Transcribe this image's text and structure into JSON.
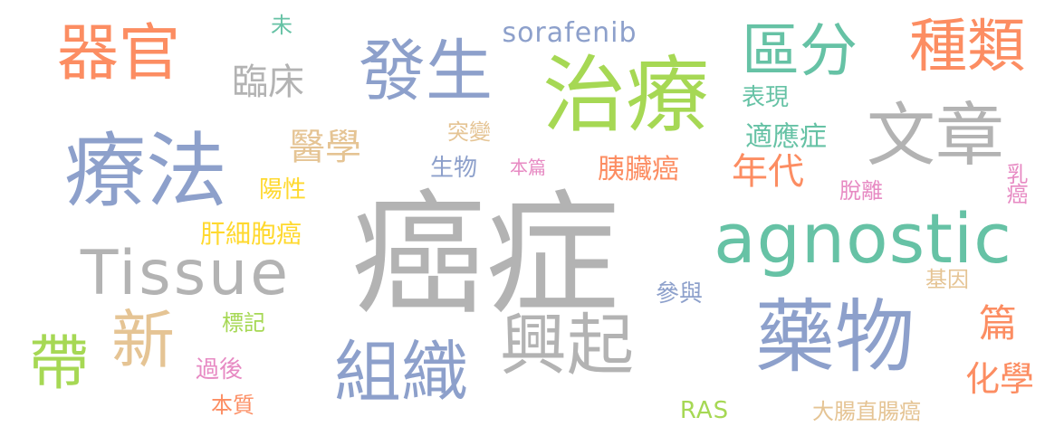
{
  "words": [
    {
      "id": "aizheng",
      "text": "癌症",
      "color": "#b3b3b3"
    },
    {
      "id": "zhiliao",
      "text": "治療",
      "color": "#a6d854"
    },
    {
      "id": "liaofa",
      "text": "療法",
      "color": "#8da0cb"
    },
    {
      "id": "yaowu",
      "text": "藥物",
      "color": "#8da0cb"
    },
    {
      "id": "agnostic",
      "text": "agnostic",
      "color": "#66c2a5"
    },
    {
      "id": "tissue",
      "text": "Tissue",
      "color": "#b3b3b3"
    },
    {
      "id": "wenzhang",
      "text": "文章",
      "color": "#b3b3b3"
    },
    {
      "id": "fasheng",
      "text": "發生",
      "color": "#8da0cb"
    },
    {
      "id": "zuzhi",
      "text": "組織",
      "color": "#8da0cb"
    },
    {
      "id": "xingqi",
      "text": "興起",
      "color": "#b3b3b3"
    },
    {
      "id": "qiguan",
      "text": "器官",
      "color": "#fc8d62"
    },
    {
      "id": "zhonglei",
      "text": "種類",
      "color": "#fc8d62"
    },
    {
      "id": "qufen",
      "text": "區分",
      "color": "#66c2a5"
    },
    {
      "id": "dai",
      "text": "帶",
      "color": "#a6d854"
    },
    {
      "id": "xin",
      "text": "新",
      "color": "#e5c494"
    },
    {
      "id": "sorafenib",
      "text": "sorafenib",
      "color": "#8da0cb"
    },
    {
      "id": "linchuang",
      "text": "臨床",
      "color": "#b3b3b3"
    },
    {
      "id": "yixue",
      "text": "醫學",
      "color": "#e5c494"
    },
    {
      "id": "niandai",
      "text": "年代",
      "color": "#fc8d62"
    },
    {
      "id": "huaxue",
      "text": "化學",
      "color": "#fc8d62"
    },
    {
      "id": "pian",
      "text": "篇",
      "color": "#fc8d62"
    },
    {
      "id": "yizangai",
      "text": "胰臟癌",
      "color": "#fc8d62"
    },
    {
      "id": "shiyingzheng",
      "text": "適應症",
      "color": "#66c2a5"
    },
    {
      "id": "biaoxian",
      "text": "表現",
      "color": "#66c2a5"
    },
    {
      "id": "tubian",
      "text": "突變",
      "color": "#e5c494"
    },
    {
      "id": "shengwu",
      "text": "生物",
      "color": "#8da0cb"
    },
    {
      "id": "benpian",
      "text": "本篇",
      "color": "#e78ac3"
    },
    {
      "id": "yangxing",
      "text": "陽性",
      "color": "#ffd92f"
    },
    {
      "id": "ganxibaobaoai",
      "text": "肝細胞癌",
      "color": "#ffd92f"
    },
    {
      "id": "tuoli",
      "text": "脫離",
      "color": "#e78ac3"
    },
    {
      "id": "ruai",
      "text": "乳癌",
      "color": "#e78ac3"
    },
    {
      "id": "wei",
      "text": "未",
      "color": "#66c2a5"
    },
    {
      "id": "canyu",
      "text": "參與",
      "color": "#8da0cb"
    },
    {
      "id": "jiyin",
      "text": "基因",
      "color": "#e5c494"
    },
    {
      "id": "biaoji",
      "text": "標記",
      "color": "#a6d854"
    },
    {
      "id": "guohou",
      "text": "過後",
      "color": "#e78ac3"
    },
    {
      "id": "benzhi",
      "text": "本質",
      "color": "#fc8d62"
    },
    {
      "id": "ras",
      "text": "RAS",
      "color": "#a6d854"
    },
    {
      "id": "dachangai",
      "text": "大腸直腸癌",
      "color": "#e5c494"
    }
  ]
}
